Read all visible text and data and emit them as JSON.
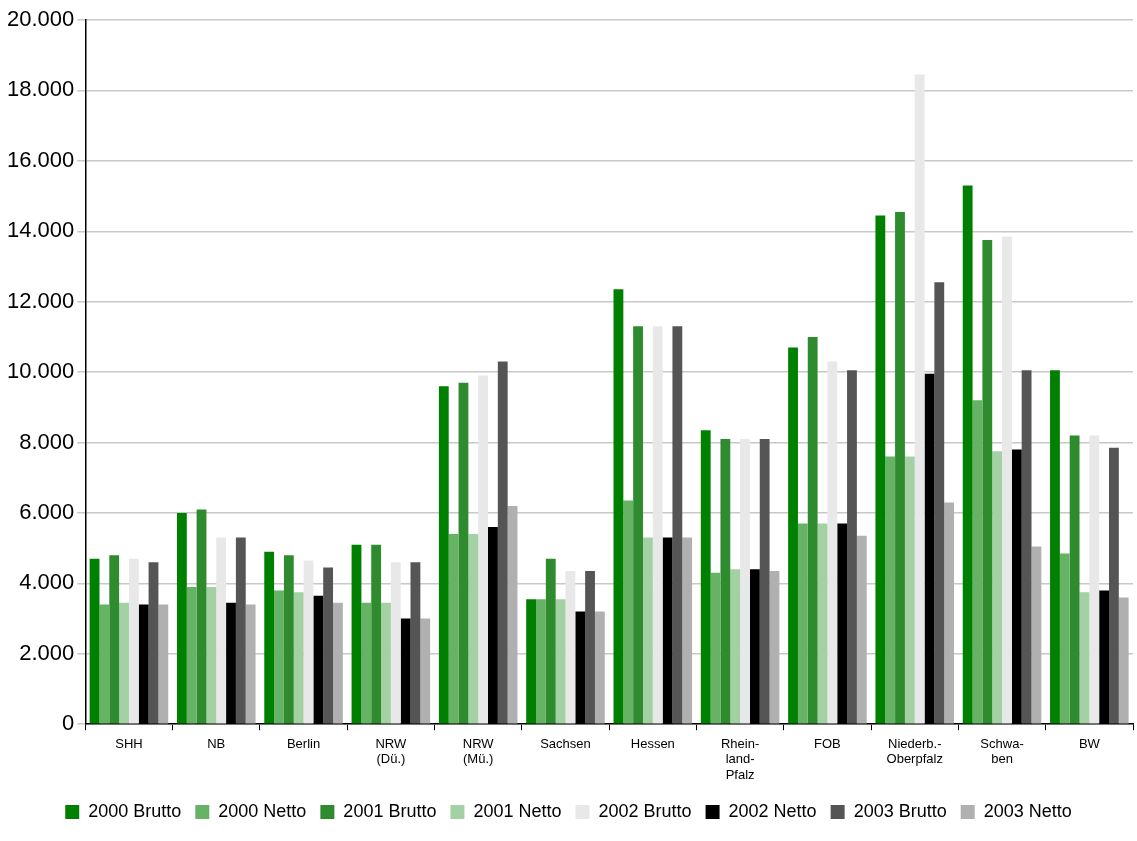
{
  "chart_data": {
    "type": "bar",
    "categories": [
      "SHH",
      "NB",
      "Berlin",
      "NRW\n(Dü.)",
      "NRW\n(Mü.)",
      "Sachsen",
      "Hessen",
      "Rhein-\nland-\nPfalz",
      "FOB",
      "Niederb.-\nOberpfalz",
      "Schwa-\nben",
      "BW"
    ],
    "series": [
      {
        "name": "2000 Brutto",
        "color": "#008000",
        "values": [
          4700,
          6000,
          4900,
          5100,
          9600,
          3550,
          12350,
          8350,
          10700,
          14450,
          15300,
          10050
        ]
      },
      {
        "name": "2000 Netto",
        "color": "#66b366",
        "values": [
          3400,
          3900,
          3800,
          3450,
          5400,
          3550,
          6350,
          4300,
          5700,
          7600,
          9200,
          4850
        ]
      },
      {
        "name": "2001 Brutto",
        "color": "#2e8b2e",
        "values": [
          4800,
          6100,
          4800,
          5100,
          9700,
          4700,
          11300,
          8100,
          11000,
          14550,
          13750,
          8200
        ]
      },
      {
        "name": "2001 Netto",
        "color": "#a3d1a3",
        "values": [
          3450,
          3900,
          3750,
          3450,
          5400,
          3550,
          5300,
          4400,
          5700,
          7600,
          7750,
          3750
        ]
      },
      {
        "name": "2002 Brutto",
        "color": "#e8e8e8",
        "values": [
          4700,
          5300,
          4650,
          4600,
          9900,
          4350,
          11300,
          8100,
          10300,
          18450,
          13850,
          8200
        ]
      },
      {
        "name": "2002 Netto",
        "color": "#000000",
        "values": [
          3400,
          3450,
          3650,
          3000,
          5600,
          3200,
          5300,
          4400,
          5700,
          9950,
          7800,
          3800
        ]
      },
      {
        "name": "2003 Brutto",
        "color": "#555555",
        "values": [
          4600,
          5300,
          4450,
          4600,
          10300,
          4350,
          11300,
          8100,
          10050,
          12550,
          10050,
          7850
        ]
      },
      {
        "name": "2003 Netto",
        "color": "#b0b0b0",
        "values": [
          3400,
          3400,
          3450,
          3000,
          6200,
          3200,
          5300,
          4350,
          5350,
          6300,
          5050,
          3600
        ]
      }
    ],
    "ylim": [
      0,
      20000
    ],
    "yticks": [
      {
        "value": 0,
        "label": "0"
      },
      {
        "value": 2000,
        "label": "2.000"
      },
      {
        "value": 4000,
        "label": "4.000"
      },
      {
        "value": 6000,
        "label": "6.000"
      },
      {
        "value": 8000,
        "label": "8.000"
      },
      {
        "value": 10000,
        "label": "10.000"
      },
      {
        "value": 12000,
        "label": "12.000"
      },
      {
        "value": 14000,
        "label": "14.000"
      },
      {
        "value": 16000,
        "label": "16.000"
      },
      {
        "value": 18000,
        "label": "18.000"
      },
      {
        "value": 20000,
        "label": "20.000"
      }
    ],
    "grid": "y",
    "legend": "bottom"
  }
}
